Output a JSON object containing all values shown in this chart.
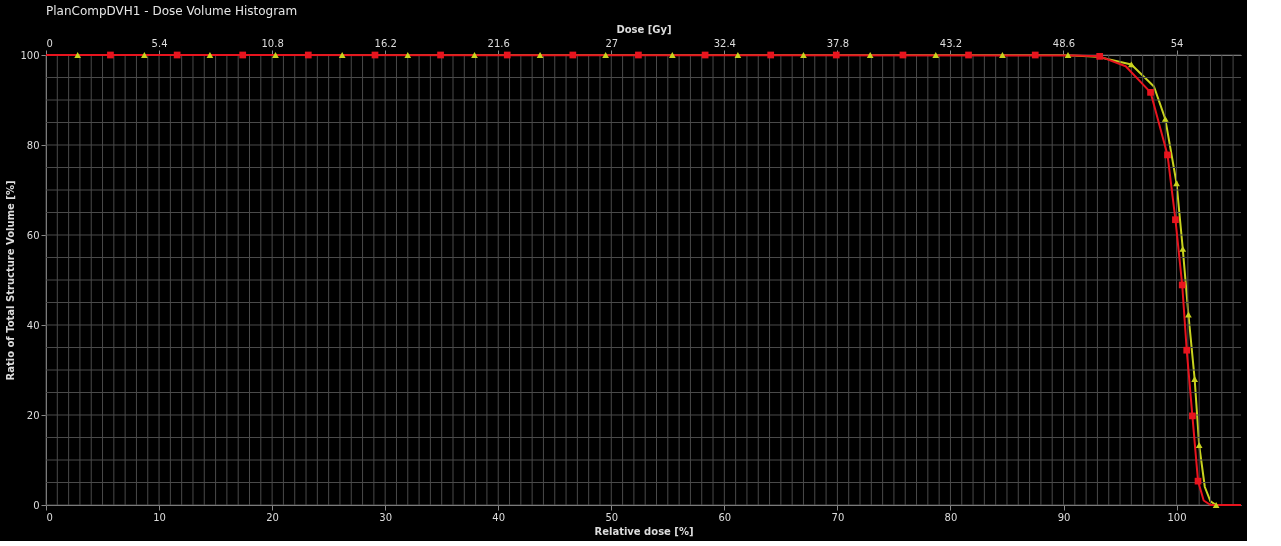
{
  "chart_data": {
    "type": "line",
    "title": "PlanCompDVH1 - Dose Volume Histogram",
    "xlabel": "Relative dose [%]",
    "x2label": "Dose [Gy]",
    "ylabel": "Ratio of Total Structure Volume [%]",
    "xlim": [
      0,
      105.7
    ],
    "ylim": [
      0,
      100
    ],
    "x2lim": [
      0,
      57.08
    ],
    "xticks": [
      0,
      {
        "value": 1,
        "label": null
      },
      {
        "value": 2,
        "label": null
      },
      {
        "value": 3,
        "label": null
      },
      {
        "value": 4,
        "label": null
      },
      {
        "value": 5,
        "label": null
      },
      {
        "value": 6,
        "label": null
      },
      {
        "value": 7,
        "label": null
      },
      {
        "value": 8,
        "label": null
      },
      {
        "value": 9,
        "label": null
      },
      10,
      {
        "value": 11,
        "label": null
      },
      {
        "value": 12,
        "label": null
      },
      {
        "value": 13,
        "label": null
      },
      {
        "value": 14,
        "label": null
      },
      {
        "value": 15,
        "label": null
      },
      {
        "value": 16,
        "label": null
      },
      {
        "value": 17,
        "label": null
      },
      {
        "value": 18,
        "label": null
      },
      {
        "value": 19,
        "label": null
      },
      20,
      {
        "value": 21,
        "label": null
      },
      {
        "value": 22,
        "label": null
      },
      {
        "value": 23,
        "label": null
      },
      {
        "value": 24,
        "label": null
      },
      {
        "value": 25,
        "label": null
      },
      {
        "value": 26,
        "label": null
      },
      {
        "value": 27,
        "label": null
      },
      {
        "value": 28,
        "label": null
      },
      {
        "value": 29,
        "label": null
      },
      30,
      {
        "value": 31,
        "label": null
      },
      {
        "value": 32,
        "label": null
      },
      {
        "value": 33,
        "label": null
      },
      {
        "value": 34,
        "label": null
      },
      {
        "value": 35,
        "label": null
      },
      {
        "value": 36,
        "label": null
      },
      {
        "value": 37,
        "label": null
      },
      {
        "value": 38,
        "label": null
      },
      {
        "value": 39,
        "label": null
      },
      40,
      {
        "value": 41,
        "label": null
      },
      {
        "value": 42,
        "label": null
      },
      {
        "value": 43,
        "label": null
      },
      {
        "value": 44,
        "label": null
      },
      {
        "value": 45,
        "label": null
      },
      {
        "value": 46,
        "label": null
      },
      {
        "value": 47,
        "label": null
      },
      {
        "value": 48,
        "label": null
      },
      {
        "value": 49,
        "label": null
      },
      50,
      {
        "value": 51,
        "label": null
      },
      {
        "value": 52,
        "label": null
      },
      {
        "value": 53,
        "label": null
      },
      {
        "value": 54,
        "label": null
      },
      {
        "value": 55,
        "label": null
      },
      {
        "value": 56,
        "label": null
      },
      {
        "value": 57,
        "label": null
      },
      {
        "value": 58,
        "label": null
      },
      {
        "value": 59,
        "label": null
      },
      60,
      {
        "value": 61,
        "label": null
      },
      {
        "value": 62,
        "label": null
      },
      {
        "value": 63,
        "label": null
      },
      {
        "value": 64,
        "label": null
      },
      {
        "value": 65,
        "label": null
      },
      {
        "value": 66,
        "label": null
      },
      {
        "value": 67,
        "label": null
      },
      {
        "value": 68,
        "label": null
      },
      {
        "value": 69,
        "label": null
      },
      70,
      {
        "value": 71,
        "label": null
      },
      {
        "value": 72,
        "label": null
      },
      {
        "value": 73,
        "label": null
      },
      {
        "value": 74,
        "label": null
      },
      {
        "value": 75,
        "label": null
      },
      {
        "value": 76,
        "label": null
      },
      {
        "value": 77,
        "label": null
      },
      {
        "value": 78,
        "label": null
      },
      {
        "value": 79,
        "label": null
      },
      80,
      {
        "value": 81,
        "label": null
      },
      {
        "value": 82,
        "label": null
      },
      {
        "value": 83,
        "label": null
      },
      {
        "value": 84,
        "label": null
      },
      {
        "value": 85,
        "label": null
      },
      {
        "value": 86,
        "label": null
      },
      {
        "value": 87,
        "label": null
      },
      {
        "value": 88,
        "label": null
      },
      {
        "value": 89,
        "label": null
      },
      90,
      {
        "value": 91,
        "label": null
      },
      {
        "value": 92,
        "label": null
      },
      {
        "value": 93,
        "label": null
      },
      {
        "value": 94,
        "label": null
      },
      {
        "value": 95,
        "label": null
      },
      {
        "value": 96,
        "label": null
      },
      {
        "value": 97,
        "label": null
      },
      {
        "value": 98,
        "label": null
      },
      {
        "value": 99,
        "label": null
      },
      100,
      {
        "value": 101,
        "label": null
      },
      {
        "value": 102,
        "label": null
      },
      {
        "value": 103,
        "label": null
      },
      {
        "value": 104,
        "label": null
      },
      {
        "value": 105,
        "label": null
      }
    ],
    "yticks": [
      0,
      {
        "value": 5,
        "label": null
      },
      {
        "value": 10,
        "label": null
      },
      {
        "value": 15,
        "label": null
      },
      20,
      {
        "value": 25,
        "label": null
      },
      {
        "value": 30,
        "label": null
      },
      {
        "value": 35,
        "label": null
      },
      40,
      {
        "value": 45,
        "label": null
      },
      {
        "value": 50,
        "label": null
      },
      {
        "value": 55,
        "label": null
      },
      60,
      {
        "value": 65,
        "label": null
      },
      {
        "value": 70,
        "label": null
      },
      {
        "value": 75,
        "label": null
      },
      80,
      {
        "value": 85,
        "label": null
      },
      {
        "value": 90,
        "label": null
      },
      {
        "value": 95,
        "label": null
      },
      100
    ],
    "x2ticks": [
      0,
      5.4,
      10.8,
      16.2,
      21.6,
      27,
      32.4,
      37.8,
      43.2,
      48.6,
      54
    ],
    "grid": true,
    "series": [
      {
        "type": "line",
        "color": "#c8d21e",
        "marker": "none",
        "x": [
          0,
          90,
          93,
          96,
          98,
          99,
          100,
          100.55,
          101.05,
          101.6,
          102,
          102.5,
          103,
          103.5,
          105.7
        ],
        "values": [
          100,
          100,
          99.6,
          97.9,
          93,
          85.8,
          71.5,
          56.9,
          42.3,
          28,
          13.3,
          4,
          0.8,
          0,
          0
        ]
      },
      {
        "type": "line",
        "color": "#e8141e",
        "marker": "none",
        "x": [
          0,
          91,
          93.2,
          95.5,
          97.7,
          99.2,
          99.9,
          100.5,
          100.9,
          101.4,
          101.9,
          102.4,
          103,
          105.7
        ],
        "values": [
          100,
          99.9,
          99.7,
          97.5,
          91.7,
          77.8,
          63.4,
          48.9,
          34.4,
          19.8,
          5.3,
          1,
          0,
          0
        ]
      },
      {
        "type": "scatter",
        "color": "#c8d21e",
        "marker": "triangle",
        "x": [
          2.8,
          8.7,
          14.5,
          20.3,
          26.2,
          32,
          37.9,
          43.7,
          49.5,
          55.4,
          61.2,
          67,
          72.9,
          78.7,
          84.6,
          90.4,
          96,
          99,
          100,
          100.55,
          101.05,
          101.6,
          102,
          103.5
        ],
        "values": [
          100,
          100,
          100,
          100,
          100,
          100,
          100,
          100,
          100,
          100,
          100,
          100,
          100,
          100,
          100,
          100,
          97.9,
          85.8,
          71.5,
          56.9,
          42.3,
          28,
          13.3,
          0
        ]
      },
      {
        "type": "scatter",
        "color": "#e8141e",
        "marker": "square",
        "x": [
          5.7,
          11.6,
          17.4,
          23.2,
          29.1,
          34.9,
          40.8,
          46.6,
          52.4,
          58.3,
          64.1,
          69.9,
          75.8,
          81.6,
          87.5,
          93.2,
          97.7,
          99.2,
          99.9,
          100.5,
          100.9,
          101.4,
          101.9
        ],
        "values": [
          100,
          100,
          100,
          100,
          100,
          100,
          100,
          100,
          100,
          100,
          100,
          100,
          100,
          100,
          100,
          99.7,
          91.7,
          77.8,
          63.4,
          48.9,
          34.4,
          19.8,
          5.3
        ]
      }
    ]
  }
}
